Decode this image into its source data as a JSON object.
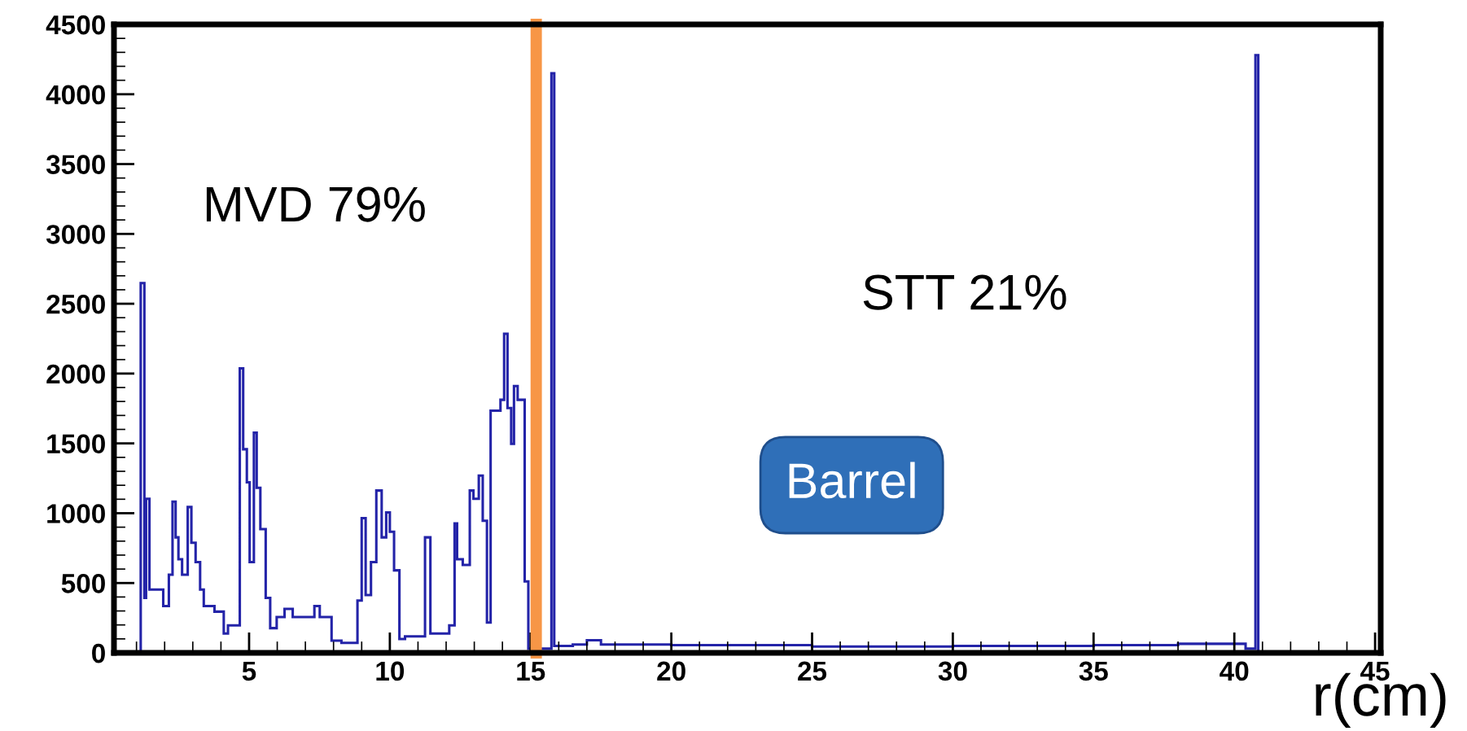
{
  "chart_data": {
    "type": "histogram",
    "xlabel": "r(cm)",
    "bins": [
      0.2,
      1.15,
      1.28,
      1.34,
      1.46,
      1.95,
      2.15,
      2.28,
      2.39,
      2.49,
      2.62,
      2.82,
      2.95,
      3.1,
      3.26,
      3.39,
      3.77,
      4.1,
      4.25,
      4.67,
      4.79,
      4.92,
      5.02,
      5.17,
      5.27,
      5.4,
      5.59,
      5.75,
      5.98,
      6.26,
      6.55,
      7.32,
      7.51,
      7.93,
      8.28,
      8.85,
      9.0,
      9.14,
      9.33,
      9.52,
      9.71,
      9.87,
      10.0,
      10.15,
      10.34,
      10.54,
      11.25,
      11.44,
      12.11,
      12.3,
      12.39,
      12.59,
      12.84,
      12.97,
      13.16,
      13.3,
      13.45,
      13.58,
      13.93,
      14.06,
      14.18,
      14.31,
      14.41,
      14.54,
      14.79,
      14.92,
      15.74,
      15.84,
      16.5,
      17.0,
      17.5,
      20,
      25,
      30,
      35,
      38,
      40.4,
      40.75,
      40.85,
      45
    ],
    "values": [
      0,
      2648,
      394,
      1103,
      453,
      335,
      560,
      1083,
      827,
      670,
      560,
      1044,
      788,
      650,
      453,
      335,
      295,
      138,
      197,
      2037,
      1458,
      1221,
      650,
      1576,
      1182,
      886,
      394,
      177,
      256,
      315,
      256,
      335,
      256,
      87,
      71,
      374,
      965,
      414,
      650,
      1162,
      827,
      1005,
      867,
      591,
      99,
      118,
      827,
      138,
      197,
      926,
      670,
      630,
      1162,
      1103,
      1269,
      946,
      217,
      1734,
      1812,
      2285,
      1753,
      1497,
      1911,
      1812,
      512,
      30,
      4150,
      50,
      60,
      90,
      60,
      55,
      45,
      50,
      55,
      65,
      30,
      4280,
      5
    ],
    "color": "#2323a8",
    "xlim": [
      0.2,
      45.2
    ],
    "xticks": [
      5,
      10,
      15,
      20,
      25,
      30,
      35,
      40,
      45
    ],
    "ylim": [
      0,
      4500
    ],
    "yticks": [
      0,
      500,
      1000,
      1500,
      2000,
      2500,
      3000,
      3500,
      4000,
      4500
    ],
    "grid": false,
    "ref_lines": [
      {
        "axis": "x",
        "value": 15.2,
        "color": "#f79646"
      }
    ],
    "annotations": [
      "MVD 79%",
      "STT 21%",
      "Barrel"
    ]
  }
}
